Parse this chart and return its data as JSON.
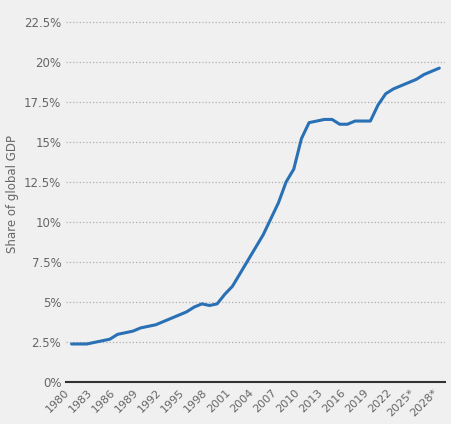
{
  "years": [
    1980,
    1981,
    1982,
    1983,
    1984,
    1985,
    1986,
    1987,
    1988,
    1989,
    1990,
    1991,
    1992,
    1993,
    1994,
    1995,
    1996,
    1997,
    1998,
    1999,
    2000,
    2001,
    2002,
    2003,
    2004,
    2005,
    2006,
    2007,
    2008,
    2009,
    2010,
    2011,
    2012,
    2013,
    2014,
    2015,
    2016,
    2017,
    2018,
    2019,
    2020,
    2021,
    2022,
    2023,
    2024,
    2025,
    2026,
    2027,
    2028
  ],
  "values": [
    0.024,
    0.024,
    0.024,
    0.025,
    0.026,
    0.027,
    0.03,
    0.031,
    0.032,
    0.034,
    0.035,
    0.036,
    0.038,
    0.04,
    0.042,
    0.044,
    0.047,
    0.049,
    0.048,
    0.049,
    0.055,
    0.06,
    0.068,
    0.076,
    0.084,
    0.092,
    0.102,
    0.112,
    0.125,
    0.133,
    0.152,
    0.162,
    0.163,
    0.164,
    0.164,
    0.161,
    0.161,
    0.163,
    0.163,
    0.163,
    0.173,
    0.18,
    0.183,
    0.185,
    0.187,
    0.189,
    0.192,
    0.194,
    0.196
  ],
  "line_color": "#2970b5",
  "line_width": 2.2,
  "background_color": "#f0f0f0",
  "plot_bg_color": "#f0f0f0",
  "grid_color": "#b0b0b0",
  "ylabel": "Share of global GDP",
  "yticks": [
    0.0,
    0.025,
    0.05,
    0.075,
    0.1,
    0.125,
    0.15,
    0.175,
    0.2,
    0.225
  ],
  "ytick_labels": [
    "0%",
    "2.5%",
    "5%",
    "7.5%",
    "10%",
    "12.5%",
    "15%",
    "17.5%",
    "20%",
    "22.5%"
  ],
  "xtick_years": [
    1980,
    1983,
    1986,
    1989,
    1992,
    1995,
    1998,
    2001,
    2004,
    2007,
    2010,
    2013,
    2016,
    2019,
    2022,
    2025,
    2028
  ],
  "xtick_labels": [
    "1980",
    "1983",
    "1986",
    "1989",
    "1992",
    "1995",
    "1998",
    "2001",
    "2004",
    "2007",
    "2010",
    "2013",
    "2016",
    "2019",
    "2022",
    "2025*",
    "2028*"
  ],
  "ylim": [
    0.0,
    0.235
  ],
  "xlim": [
    1979.3,
    2028.8
  ],
  "figwidth": 4.51,
  "figheight": 4.24,
  "dpi": 100
}
